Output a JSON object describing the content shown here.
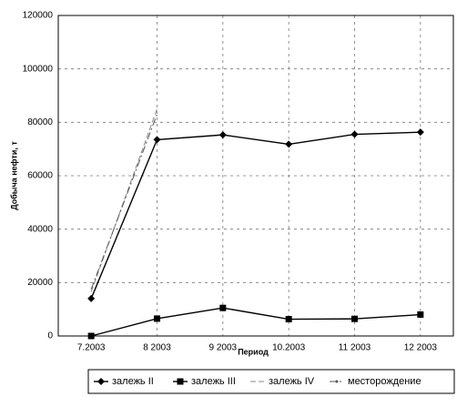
{
  "chart_data": {
    "type": "line",
    "x_label": "Период",
    "y_label": "Добыча нефти, т",
    "categories": [
      "7.2003",
      "8 2003",
      "9 2003",
      "10.2003",
      "11 2003",
      "12 2003"
    ],
    "series": [
      {
        "name": "залежь II",
        "color": "#000000",
        "marker": "diamond",
        "line_style": "solid",
        "values": [
          14000,
          73500,
          75300,
          71800,
          75500,
          76300
        ]
      },
      {
        "name": "залежь III",
        "color": "#000000",
        "marker": "square",
        "line_style": "solid",
        "values": [
          0,
          6500,
          10500,
          6300,
          6400,
          8000
        ]
      },
      {
        "name": "залежь IV",
        "color": "#888888",
        "marker": "none",
        "line_style": "dashed",
        "values": [
          16500,
          85000,
          null,
          null,
          null,
          null
        ]
      },
      {
        "name": "месторождение",
        "color": "#555555",
        "marker": "dot",
        "line_style": "dashdot",
        "values": [
          17500,
          83000,
          null,
          null,
          null,
          null
        ]
      }
    ],
    "ylim": [
      0,
      120000
    ],
    "yticks": [
      0,
      20000,
      40000,
      60000,
      80000,
      100000,
      120000
    ],
    "grid": true,
    "legend": "bottom"
  }
}
